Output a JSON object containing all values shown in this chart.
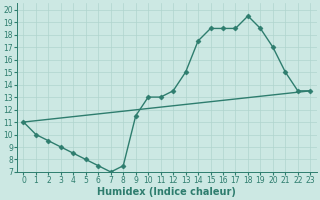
{
  "line1_x": [
    0,
    1,
    2,
    3,
    4,
    5,
    6,
    7,
    8,
    9,
    10,
    11,
    12,
    13,
    14,
    15,
    16,
    17,
    18,
    19,
    20,
    21,
    22,
    23
  ],
  "line1_y": [
    11,
    10,
    9.5,
    9,
    8.5,
    8,
    7.5,
    7,
    7.5,
    11.5,
    13,
    13,
    13.5,
    15,
    17.5,
    18.5,
    18.5,
    18.5,
    19.5,
    18.5,
    17,
    15,
    13.5,
    13.5
  ],
  "line2_x": [
    0,
    23
  ],
  "line2_y": [
    11,
    13.5
  ],
  "line_color": "#2e7d6e",
  "bg_color": "#cce8e3",
  "grid_color": "#b0d5ce",
  "xlabel": "Humidex (Indice chaleur)",
  "xlim": [
    -0.5,
    23.5
  ],
  "ylim": [
    7,
    20.5
  ],
  "xticks": [
    0,
    1,
    2,
    3,
    4,
    5,
    6,
    7,
    8,
    9,
    10,
    11,
    12,
    13,
    14,
    15,
    16,
    17,
    18,
    19,
    20,
    21,
    22,
    23
  ],
  "yticks": [
    7,
    8,
    9,
    10,
    11,
    12,
    13,
    14,
    15,
    16,
    17,
    18,
    19,
    20
  ],
  "marker_size": 2.5,
  "linewidth": 1.0,
  "xlabel_fontsize": 7,
  "tick_fontsize": 5.5
}
